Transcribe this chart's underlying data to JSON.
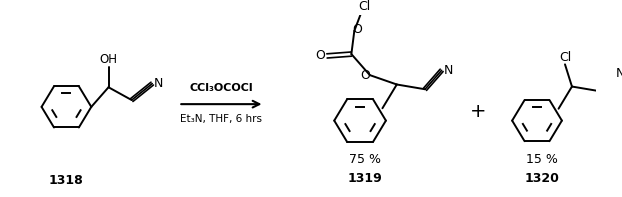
{
  "figsize": [
    6.22,
    1.97
  ],
  "dpi": 100,
  "bg_color": "#ffffff",
  "reagent_line1": "CCl₃OCOCl",
  "reagent_line2": "Et₃N, THF, 6 hrs",
  "label_1318": "1318",
  "label_1319": "1319",
  "label_1320": "1320",
  "yield_1319": "75 %",
  "yield_1320": "15 %",
  "plus_sign": "+"
}
